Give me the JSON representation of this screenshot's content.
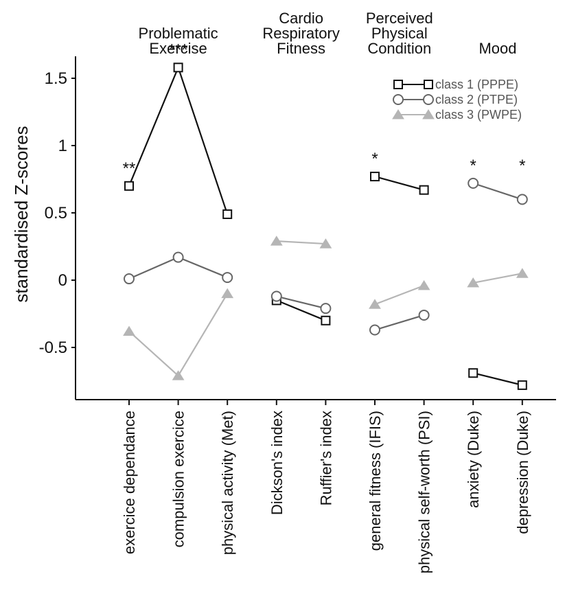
{
  "chart_data": {
    "type": "line",
    "title": "",
    "xlabel": "",
    "ylabel": "standardised Z-scores",
    "ylim": [
      -0.75,
      1.75
    ],
    "yticks": [
      {
        "value": 1.5,
        "label": "1.5"
      },
      {
        "value": 1,
        "label": "1"
      },
      {
        "value": 0.5,
        "label": "0.5"
      },
      {
        "value": 0,
        "label": "0"
      },
      {
        "value": -0.5,
        "label": "-0.5"
      }
    ],
    "grid": false,
    "legend_position": "top-right",
    "categories": [
      "exercice dependance",
      "compulsion exercice",
      "physical activity (Met)",
      "Dickson's index",
      "Ruffier's index",
      "general fitness (IFIS)",
      "physical self-worth (PSI)",
      "anxiety (Duke)",
      "depression (Duke)"
    ],
    "groups": [
      {
        "label_lines": [
          "Problematic",
          "Exercise"
        ],
        "indices": [
          0,
          1,
          2
        ]
      },
      {
        "label_lines": [
          "Cardio",
          "Respiratory",
          "Fitness"
        ],
        "indices": [
          3,
          4
        ]
      },
      {
        "label_lines": [
          "Perceived",
          "Physical",
          "Condition"
        ],
        "indices": [
          5,
          6
        ]
      },
      {
        "label_lines": [
          "Mood"
        ],
        "indices": [
          7,
          8
        ]
      }
    ],
    "series": [
      {
        "name": "class 1 (PPPE)",
        "marker": "square",
        "color": "#111111",
        "values": [
          0.7,
          1.58,
          0.49,
          -0.15,
          -0.3,
          0.77,
          0.67,
          -0.69,
          -0.78
        ]
      },
      {
        "name": "class 2 (PTPE)",
        "marker": "circle",
        "color": "#666666",
        "values": [
          0.01,
          0.17,
          0.02,
          -0.12,
          -0.21,
          -0.37,
          -0.26,
          0.72,
          0.6
        ]
      },
      {
        "name": "class 3 (PWPE)",
        "marker": "triangle",
        "color": "#b5b5b5",
        "values": [
          -0.38,
          -0.71,
          -0.1,
          0.29,
          0.27,
          -0.18,
          -0.04,
          -0.02,
          0.05
        ]
      }
    ],
    "annotations": [
      {
        "category_index": 0,
        "text": "**",
        "anchor_value": 0.7
      },
      {
        "category_index": 1,
        "text": "***",
        "anchor_value": 1.58
      },
      {
        "category_index": 5,
        "text": "*",
        "anchor_value": 0.77
      },
      {
        "category_index": 7,
        "text": "*",
        "anchor_value": 0.72
      },
      {
        "category_index": 8,
        "text": "*",
        "anchor_value": 0.72
      }
    ]
  }
}
